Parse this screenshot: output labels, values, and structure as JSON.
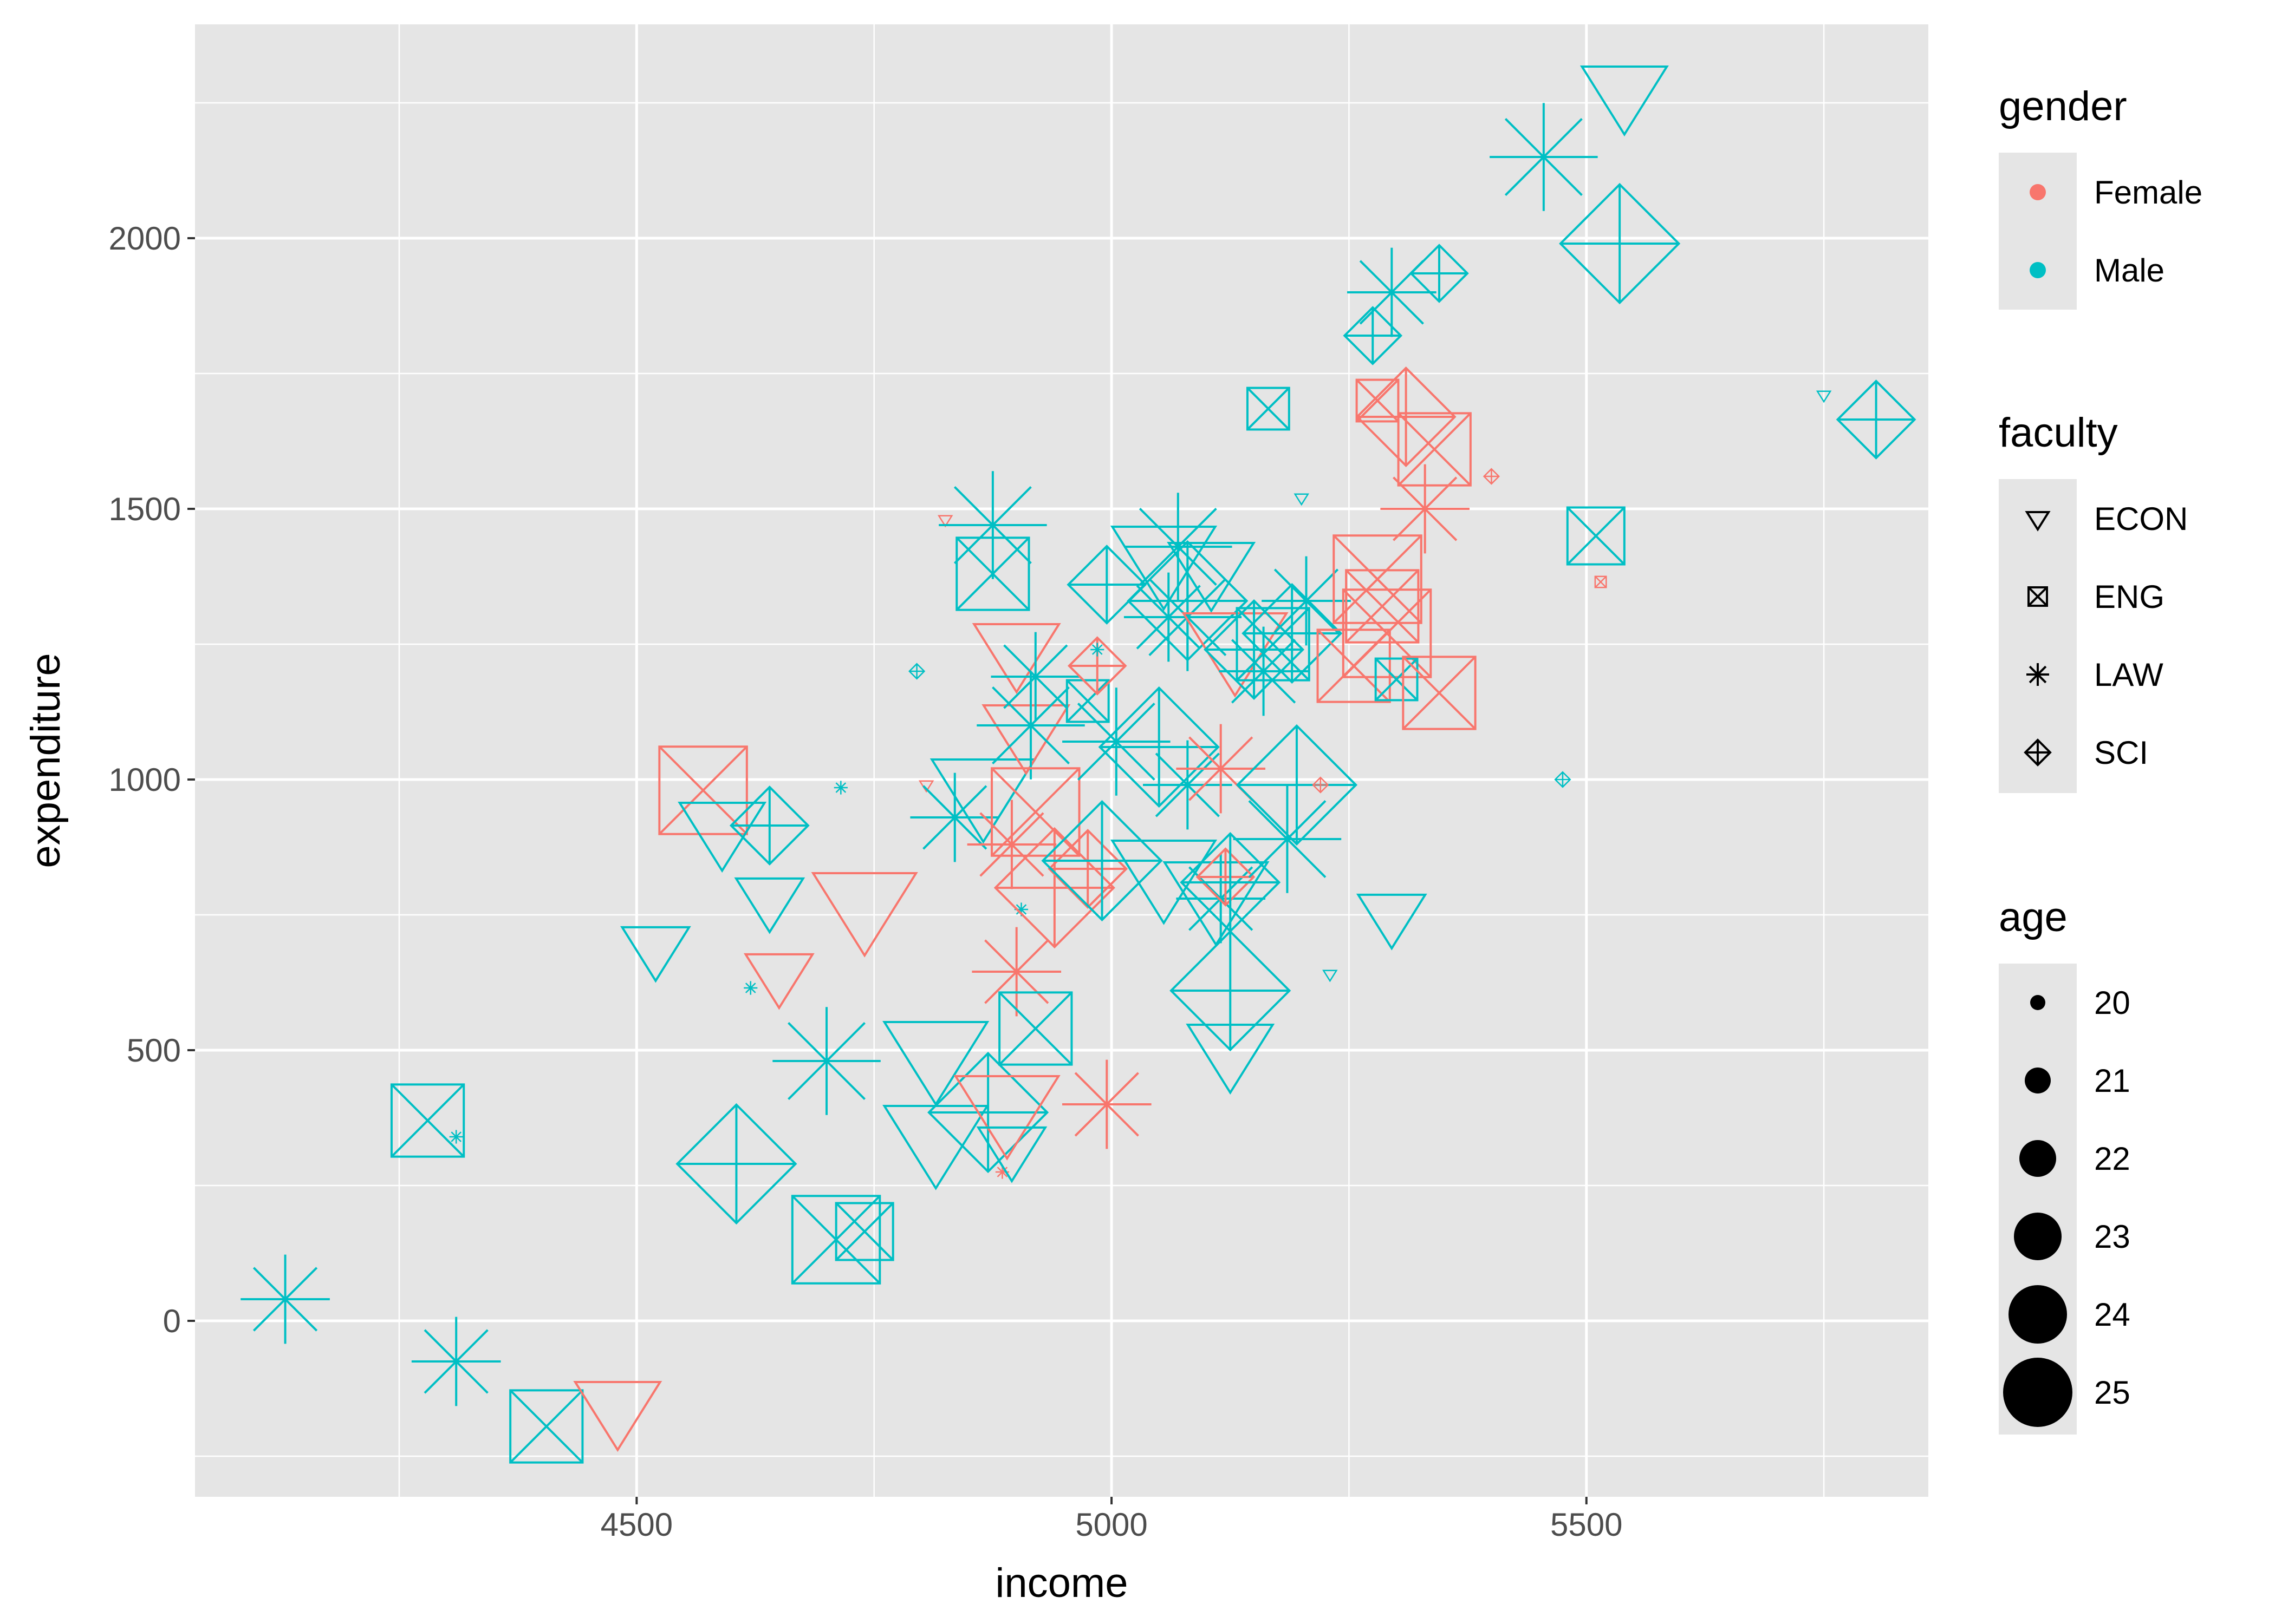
{
  "chart_data": {
    "type": "scatter",
    "xlabel": "income",
    "ylabel": "expenditure",
    "xlim": [
      4035,
      5860
    ],
    "ylim": [
      -325,
      2395
    ],
    "x_ticks": [
      4500,
      5000,
      5500
    ],
    "y_ticks": [
      0,
      500,
      1000,
      1500,
      2000
    ],
    "grid": true,
    "background": "#e5e5e5",
    "legend_position": "right",
    "colors": {
      "Female": "#f8766d",
      "Male": "#00bfc4"
    },
    "shapes": {
      "ECON": "triangle-down",
      "ENG": "square-cross",
      "LAW": "asterisk",
      "SCI": "diamond-plus"
    },
    "legends": {
      "gender": {
        "title": "gender",
        "items": [
          "Female",
          "Male"
        ]
      },
      "faculty": {
        "title": "faculty",
        "items": [
          "ECON",
          "ENG",
          "LAW",
          "SCI"
        ]
      },
      "age": {
        "title": "age",
        "items": [
          "20",
          "21",
          "22",
          "23",
          "24",
          "25"
        ]
      }
    },
    "points": [
      {
        "income": 4130,
        "expenditure": 40,
        "gender": "Male",
        "faculty": "LAW",
        "age": 24
      },
      {
        "income": 4310,
        "expenditure": -75,
        "gender": "Male",
        "faculty": "LAW",
        "age": 24
      },
      {
        "income": 4280,
        "expenditure": 370,
        "gender": "Male",
        "faculty": "ENG",
        "age": 24
      },
      {
        "income": 4310,
        "expenditure": 340,
        "gender": "Male",
        "faculty": "LAW",
        "age": 20
      },
      {
        "income": 4405,
        "expenditure": -195,
        "gender": "Male",
        "faculty": "ENG",
        "age": 24
      },
      {
        "income": 4480,
        "expenditure": -160,
        "gender": "Female",
        "faculty": "ECON",
        "age": 24
      },
      {
        "income": 4520,
        "expenditure": 690,
        "gender": "Male",
        "faculty": "ECON",
        "age": 23
      },
      {
        "income": 4570,
        "expenditure": 980,
        "gender": "Female",
        "faculty": "ENG",
        "age": 25
      },
      {
        "income": 4590,
        "expenditure": 910,
        "gender": "Male",
        "faculty": "ECON",
        "age": 24
      },
      {
        "income": 4605,
        "expenditure": 290,
        "gender": "Male",
        "faculty": "SCI",
        "age": 25
      },
      {
        "income": 4620,
        "expenditure": 615,
        "gender": "Male",
        "faculty": "LAW",
        "age": 20
      },
      {
        "income": 4640,
        "expenditure": 780,
        "gender": "Male",
        "faculty": "ECON",
        "age": 23
      },
      {
        "income": 4640,
        "expenditure": 915,
        "gender": "Male",
        "faculty": "SCI",
        "age": 23
      },
      {
        "income": 4650,
        "expenditure": 640,
        "gender": "Female",
        "faculty": "ECON",
        "age": 23
      },
      {
        "income": 4700,
        "expenditure": 480,
        "gender": "Male",
        "faculty": "LAW",
        "age": 25
      },
      {
        "income": 4715,
        "expenditure": 985,
        "gender": "Male",
        "faculty": "LAW",
        "age": 20
      },
      {
        "income": 4740,
        "expenditure": 770,
        "gender": "Female",
        "faculty": "ECON",
        "age": 25
      },
      {
        "income": 4710,
        "expenditure": 150,
        "gender": "Male",
        "faculty": "ENG",
        "age": 25
      },
      {
        "income": 4740,
        "expenditure": 165,
        "gender": "Male",
        "faculty": "ENG",
        "age": 23
      },
      {
        "income": 4795,
        "expenditure": 1200,
        "gender": "Male",
        "faculty": "SCI",
        "age": 20
      },
      {
        "income": 4805,
        "expenditure": 990,
        "gender": "Female",
        "faculty": "ECON",
        "age": 20
      },
      {
        "income": 4815,
        "expenditure": 340,
        "gender": "Male",
        "faculty": "ECON",
        "age": 25
      },
      {
        "income": 4815,
        "expenditure": 495,
        "gender": "Male",
        "faculty": "ECON",
        "age": 25
      },
      {
        "income": 4825,
        "expenditure": 1480,
        "gender": "Female",
        "faculty": "ECON",
        "age": 20
      },
      {
        "income": 4835,
        "expenditure": 930,
        "gender": "Male",
        "faculty": "LAW",
        "age": 24
      },
      {
        "income": 4865,
        "expenditure": 980,
        "gender": "Male",
        "faculty": "ECON",
        "age": 25
      },
      {
        "income": 4870,
        "expenditure": 385,
        "gender": "Male",
        "faculty": "SCI",
        "age": 25
      },
      {
        "income": 4875,
        "expenditure": 1470,
        "gender": "Male",
        "faculty": "LAW",
        "age": 25
      },
      {
        "income": 4875,
        "expenditure": 1380,
        "gender": "Male",
        "faculty": "ENG",
        "age": 24
      },
      {
        "income": 4885,
        "expenditure": 275,
        "gender": "Female",
        "faculty": "LAW",
        "age": 20
      },
      {
        "income": 4890,
        "expenditure": 395,
        "gender": "Female",
        "faculty": "ECON",
        "age": 25
      },
      {
        "income": 4895,
        "expenditure": 320,
        "gender": "Male",
        "faculty": "ECON",
        "age": 23
      },
      {
        "income": 4895,
        "expenditure": 880,
        "gender": "Female",
        "faculty": "LAW",
        "age": 24
      },
      {
        "income": 4900,
        "expenditure": 645,
        "gender": "Female",
        "faculty": "LAW",
        "age": 24
      },
      {
        "income": 4900,
        "expenditure": 1240,
        "gender": "Female",
        "faculty": "ECON",
        "age": 24
      },
      {
        "income": 4905,
        "expenditure": 760,
        "gender": "Male",
        "faculty": "LAW",
        "age": 20
      },
      {
        "income": 4910,
        "expenditure": 1090,
        "gender": "Female",
        "faculty": "ECON",
        "age": 24
      },
      {
        "income": 4915,
        "expenditure": 1100,
        "gender": "Male",
        "faculty": "LAW",
        "age": 25
      },
      {
        "income": 4920,
        "expenditure": 540,
        "gender": "Male",
        "faculty": "ENG",
        "age": 24
      },
      {
        "income": 4920,
        "expenditure": 1190,
        "gender": "Male",
        "faculty": "LAW",
        "age": 24
      },
      {
        "income": 4920,
        "expenditure": 940,
        "gender": "Female",
        "faculty": "ENG",
        "age": 25
      },
      {
        "income": 4940,
        "expenditure": 800,
        "gender": "Female",
        "faculty": "SCI",
        "age": 25
      },
      {
        "income": 4975,
        "expenditure": 1145,
        "gender": "Male",
        "faculty": "ENG",
        "age": 22
      },
      {
        "income": 4975,
        "expenditure": 835,
        "gender": "Female",
        "faculty": "SCI",
        "age": 23
      },
      {
        "income": 4985,
        "expenditure": 1210,
        "gender": "Female",
        "faculty": "SCI",
        "age": 22
      },
      {
        "income": 4985,
        "expenditure": 1240,
        "gender": "Male",
        "faculty": "LAW",
        "age": 20
      },
      {
        "income": 4990,
        "expenditure": 850,
        "gender": "Male",
        "faculty": "SCI",
        "age": 25
      },
      {
        "income": 4995,
        "expenditure": 1360,
        "gender": "Male",
        "faculty": "SCI",
        "age": 23
      },
      {
        "income": 4995,
        "expenditure": 400,
        "gender": "Female",
        "faculty": "LAW",
        "age": 24
      },
      {
        "income": 5005,
        "expenditure": 1070,
        "gender": "Male",
        "faculty": "LAW",
        "age": 25
      },
      {
        "income": 5050,
        "expenditure": 1060,
        "gender": "Male",
        "faculty": "SCI",
        "age": 25
      },
      {
        "income": 5055,
        "expenditure": 830,
        "gender": "Male",
        "faculty": "ECON",
        "age": 25
      },
      {
        "income": 5055,
        "expenditure": 1410,
        "gender": "Male",
        "faculty": "ECON",
        "age": 25
      },
      {
        "income": 5060,
        "expenditure": 1300,
        "gender": "Male",
        "faculty": "LAW",
        "age": 24
      },
      {
        "income": 5070,
        "expenditure": 1430,
        "gender": "Male",
        "faculty": "LAW",
        "age": 25
      },
      {
        "income": 5080,
        "expenditure": 1330,
        "gender": "Male",
        "faculty": "SCI",
        "age": 25
      },
      {
        "income": 5080,
        "expenditure": 1300,
        "gender": "Male",
        "faculty": "LAW",
        "age": 25
      },
      {
        "income": 5080,
        "expenditure": 990,
        "gender": "Male",
        "faculty": "LAW",
        "age": 24
      },
      {
        "income": 5105,
        "expenditure": 1390,
        "gender": "Male",
        "faculty": "ECON",
        "age": 24
      },
      {
        "income": 5110,
        "expenditure": 790,
        "gender": "Male",
        "faculty": "ECON",
        "age": 25
      },
      {
        "income": 5115,
        "expenditure": 780,
        "gender": "Male",
        "faculty": "LAW",
        "age": 24
      },
      {
        "income": 5115,
        "expenditure": 1020,
        "gender": "Female",
        "faculty": "LAW",
        "age": 24
      },
      {
        "income": 5120,
        "expenditure": 820,
        "gender": "Female",
        "faculty": "SCI",
        "age": 22
      },
      {
        "income": 5125,
        "expenditure": 810,
        "gender": "Male",
        "faculty": "SCI",
        "age": 24
      },
      {
        "income": 5125,
        "expenditure": 610,
        "gender": "Male",
        "faculty": "SCI",
        "age": 25
      },
      {
        "income": 5125,
        "expenditure": 500,
        "gender": "Male",
        "faculty": "ECON",
        "age": 24
      },
      {
        "income": 5130,
        "expenditure": 1250,
        "gender": "Female",
        "faculty": "ECON",
        "age": 25
      },
      {
        "income": 5150,
        "expenditure": 1240,
        "gender": "Male",
        "faculty": "SCI",
        "age": 24
      },
      {
        "income": 5160,
        "expenditure": 1200,
        "gender": "Male",
        "faculty": "LAW",
        "age": 24
      },
      {
        "income": 5165,
        "expenditure": 1685,
        "gender": "Male",
        "faculty": "ENG",
        "age": 22
      },
      {
        "income": 5170,
        "expenditure": 1250,
        "gender": "Male",
        "faculty": "ENG",
        "age": 24
      },
      {
        "income": 5185,
        "expenditure": 890,
        "gender": "Male",
        "faculty": "LAW",
        "age": 25
      },
      {
        "income": 5190,
        "expenditure": 1270,
        "gender": "Male",
        "faculty": "SCI",
        "age": 24
      },
      {
        "income": 5195,
        "expenditure": 990,
        "gender": "Male",
        "faculty": "SCI",
        "age": 25
      },
      {
        "income": 5200,
        "expenditure": 1520,
        "gender": "Male",
        "faculty": "ECON",
        "age": 20
      },
      {
        "income": 5205,
        "expenditure": 1330,
        "gender": "Male",
        "faculty": "LAW",
        "age": 24
      },
      {
        "income": 5220,
        "expenditure": 990,
        "gender": "Female",
        "faculty": "SCI",
        "age": 20
      },
      {
        "income": 5230,
        "expenditure": 640,
        "gender": "Male",
        "faculty": "ECON",
        "age": 20
      },
      {
        "income": 5255,
        "expenditure": 1210,
        "gender": "Female",
        "faculty": "ENG",
        "age": 24
      },
      {
        "income": 5275,
        "expenditure": 1820,
        "gender": "Male",
        "faculty": "SCI",
        "age": 22
      },
      {
        "income": 5280,
        "expenditure": 1370,
        "gender": "Female",
        "faculty": "ENG",
        "age": 25
      },
      {
        "income": 5280,
        "expenditure": 1700,
        "gender": "Female",
        "faculty": "ENG",
        "age": 22
      },
      {
        "income": 5285,
        "expenditure": 1320,
        "gender": "Female",
        "faculty": "ENG",
        "age": 24
      },
      {
        "income": 5290,
        "expenditure": 1270,
        "gender": "Female",
        "faculty": "ENG",
        "age": 25
      },
      {
        "income": 5295,
        "expenditure": 1900,
        "gender": "Male",
        "faculty": "LAW",
        "age": 24
      },
      {
        "income": 5295,
        "expenditure": 750,
        "gender": "Male",
        "faculty": "ECON",
        "age": 23
      },
      {
        "income": 5300,
        "expenditure": 1185,
        "gender": "Male",
        "faculty": "ENG",
        "age": 22
      },
      {
        "income": 5310,
        "expenditure": 1670,
        "gender": "Female",
        "faculty": "SCI",
        "age": 24
      },
      {
        "income": 5330,
        "expenditure": 1500,
        "gender": "Female",
        "faculty": "LAW",
        "age": 24
      },
      {
        "income": 5340,
        "expenditure": 1610,
        "gender": "Female",
        "faculty": "ENG",
        "age": 24
      },
      {
        "income": 5345,
        "expenditure": 1935,
        "gender": "Male",
        "faculty": "SCI",
        "age": 22
      },
      {
        "income": 5345,
        "expenditure": 1160,
        "gender": "Female",
        "faculty": "ENG",
        "age": 24
      },
      {
        "income": 5400,
        "expenditure": 1560,
        "gender": "Female",
        "faculty": "SCI",
        "age": 20
      },
      {
        "income": 5455,
        "expenditure": 2150,
        "gender": "Male",
        "faculty": "LAW",
        "age": 25
      },
      {
        "income": 5475,
        "expenditure": 1000,
        "gender": "Male",
        "faculty": "SCI",
        "age": 20
      },
      {
        "income": 5510,
        "expenditure": 1450,
        "gender": "Male",
        "faculty": "ENG",
        "age": 23
      },
      {
        "income": 5515,
        "expenditure": 1365,
        "gender": "Female",
        "faculty": "ENG",
        "age": 20
      },
      {
        "income": 5535,
        "expenditure": 1990,
        "gender": "Male",
        "faculty": "SCI",
        "age": 25
      },
      {
        "income": 5540,
        "expenditure": 2270,
        "gender": "Male",
        "faculty": "ECON",
        "age": 24
      },
      {
        "income": 5750,
        "expenditure": 1710,
        "gender": "Male",
        "faculty": "ECON",
        "age": 20
      },
      {
        "income": 5805,
        "expenditure": 1665,
        "gender": "Male",
        "faculty": "SCI",
        "age": 23
      }
    ]
  }
}
